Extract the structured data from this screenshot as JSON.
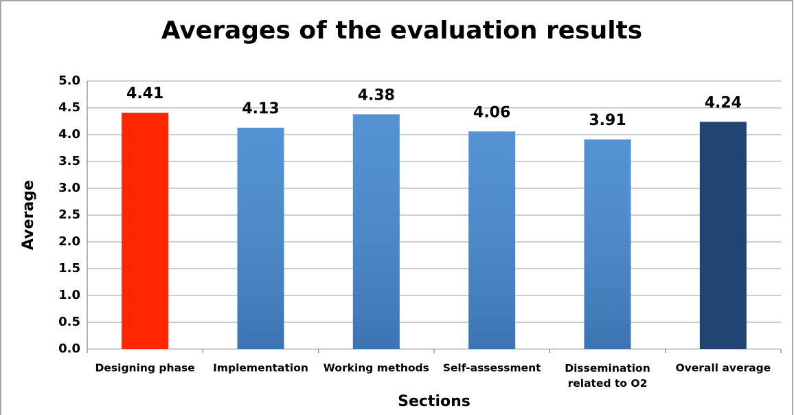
{
  "chart_data": {
    "type": "bar",
    "title": "Averages of the evaluation results",
    "x_label": "Sections",
    "y_label": "Average",
    "categories": [
      "Designing phase",
      "Implementation",
      "Working methods",
      "Self-assessment",
      "Dissemination related to O2",
      "Overall average"
    ],
    "values": [
      4.41,
      4.13,
      4.38,
      4.06,
      3.91,
      4.24
    ],
    "colors": [
      "#ff2600",
      "#4689d0",
      "#4689d0",
      "#4689d0",
      "#4689d0",
      "#1f4570"
    ],
    "ylim": [
      0,
      5
    ],
    "yticks": [
      {
        "value": 0,
        "label": "0.0"
      },
      {
        "value": 0.5,
        "label": "0.5"
      },
      {
        "value": 1,
        "label": "1.0"
      },
      {
        "value": 1.5,
        "label": "1.5"
      },
      {
        "value": 2,
        "label": "2.0"
      },
      {
        "value": 2.5,
        "label": "2.5"
      },
      {
        "value": 3,
        "label": "3.0"
      },
      {
        "value": 3.5,
        "label": "3.5"
      },
      {
        "value": 4,
        "label": "4.0"
      },
      {
        "value": 4.5,
        "label": "4.5"
      },
      {
        "value": 5,
        "label": "5.0"
      }
    ],
    "grid": true
  }
}
